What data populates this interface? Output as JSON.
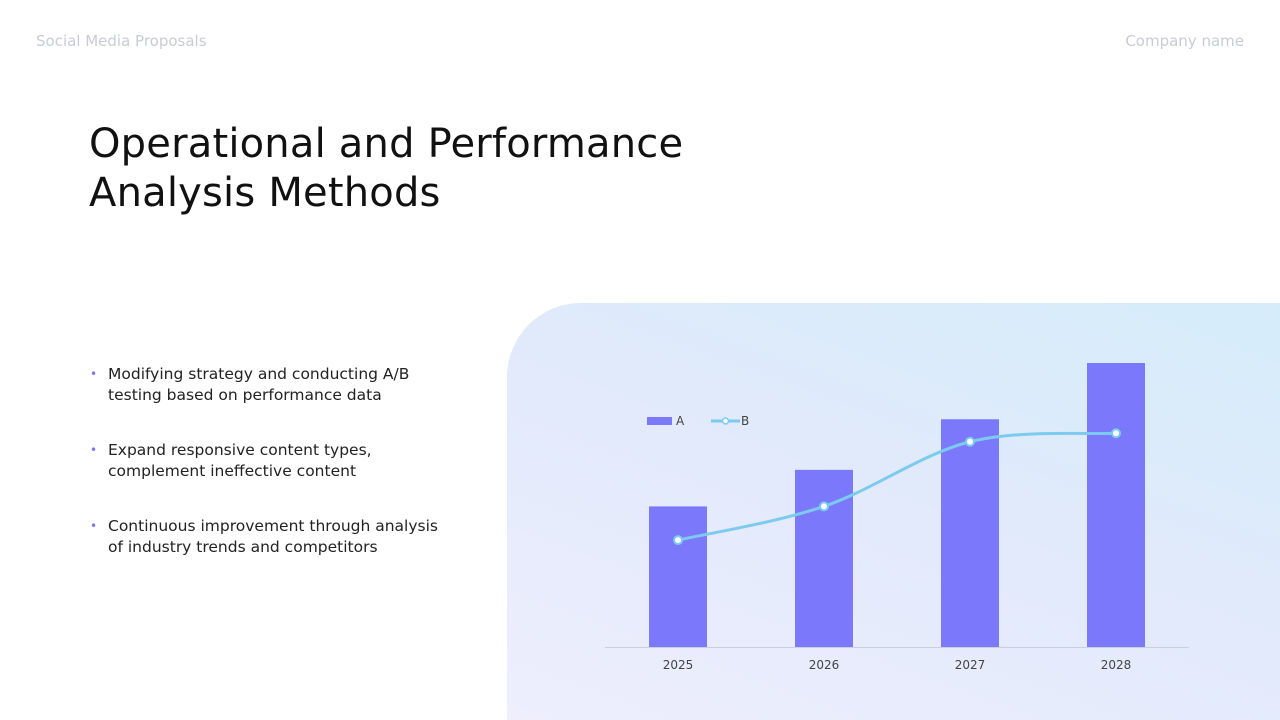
{
  "header": {
    "left_text": "Social Media Proposals",
    "right_text": "Company name"
  },
  "title": {
    "line1": "Operational and Performance",
    "line2": "Analysis Methods"
  },
  "bullets": [
    {
      "line1": "Modifying strategy and conducting A/B",
      "line2": "testing based on performance data"
    },
    {
      "line1": "Expand responsive content types,",
      "line2": "complement ineffective content"
    },
    {
      "line1": "Continuous improvement through analysis",
      "line2": "of industry trends and competitors"
    }
  ],
  "colors": {
    "bar": "#7b78fb",
    "line": "#7ccbee",
    "bullet_dot": "#7b78f7"
  },
  "chart_data": {
    "type": "bar",
    "categories": [
      "2025",
      "2026",
      "2027",
      "2028"
    ],
    "series": [
      {
        "name": "A",
        "type": "bar",
        "values": [
          50,
          63,
          81,
          101
        ]
      },
      {
        "name": "B",
        "type": "line",
        "values": [
          38,
          50,
          73,
          76
        ]
      }
    ],
    "ylim": [
      0,
      101
    ],
    "legend": "top-left",
    "grid": false,
    "title": "",
    "xlabel": "",
    "ylabel": ""
  }
}
